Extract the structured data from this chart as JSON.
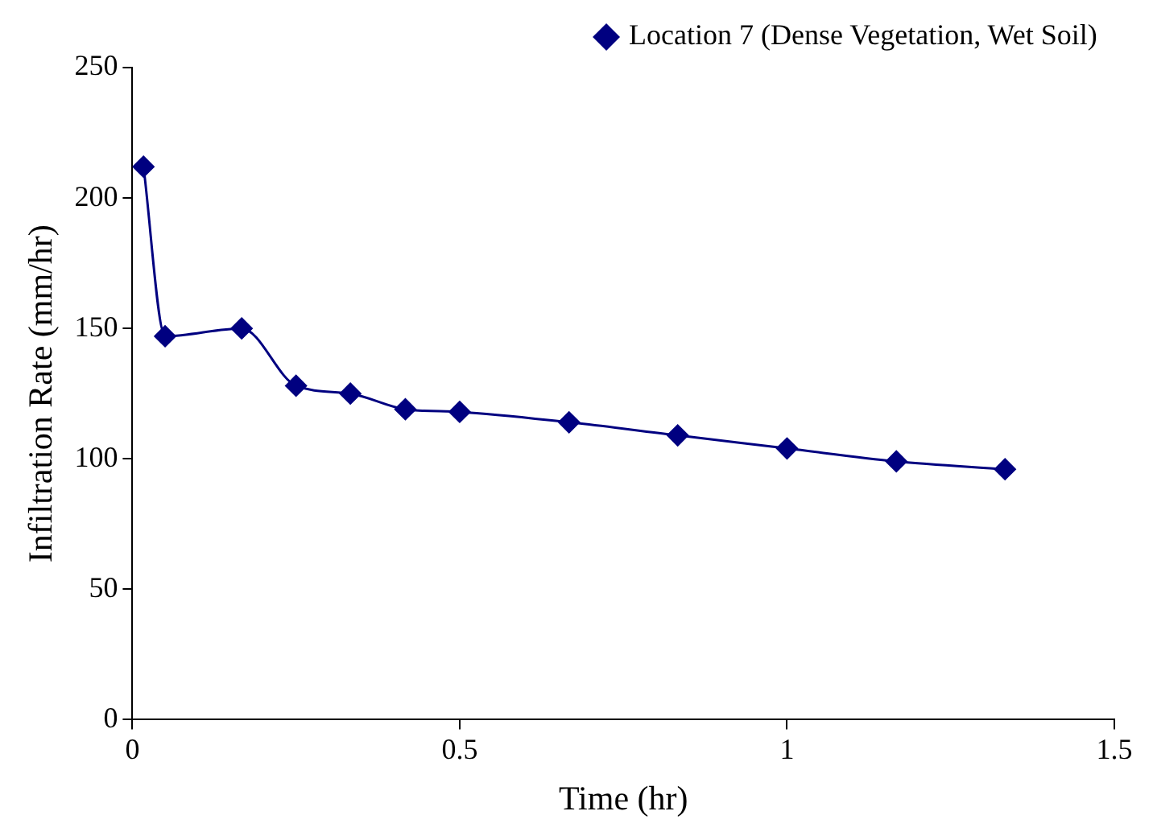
{
  "chart_data": {
    "type": "line",
    "xlabel": "Time (hr)",
    "ylabel": "Infiltration Rate (mm/hr)",
    "x": [
      0.017,
      0.05,
      0.167,
      0.25,
      0.333,
      0.417,
      0.5,
      0.667,
      0.833,
      1.0,
      1.167,
      1.333
    ],
    "series": [
      {
        "name": "Location 7 (Dense Vegetation, Wet Soil)",
        "color": "#000080",
        "values": [
          212,
          147,
          150,
          128,
          125,
          119,
          118,
          114,
          109,
          104,
          99,
          96
        ]
      }
    ],
    "xlim": [
      0,
      1.5
    ],
    "xticks": [
      0,
      0.5,
      1,
      1.5
    ],
    "ylim": [
      0,
      250
    ],
    "yticks": [
      0,
      50,
      100,
      150,
      200,
      250
    ],
    "grid": false,
    "legend": "top right",
    "marker": "diamond",
    "line_style": "solid"
  }
}
